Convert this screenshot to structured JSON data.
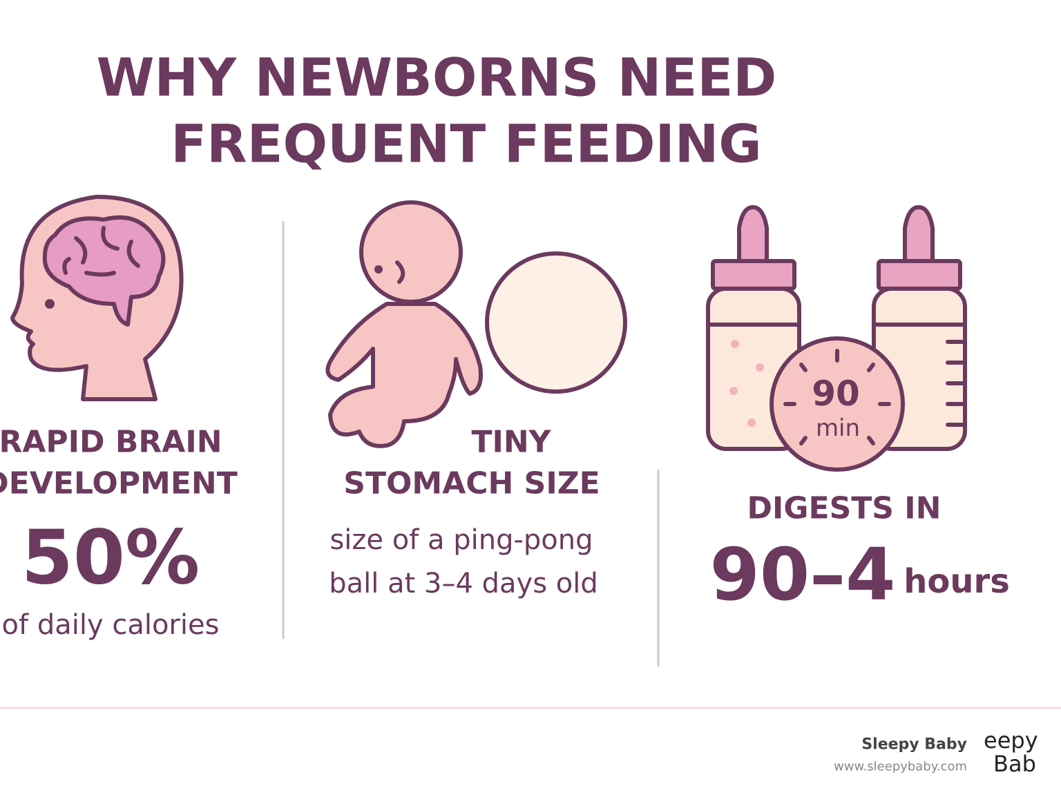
{
  "title": {
    "lines": [
      "WHY NEWBORNS NEED",
      "FREQUENT FEEDING"
    ]
  },
  "panels": [
    {
      "heading": [
        "RAPID BRAIN",
        "DEVELOPMENT"
      ],
      "stat": "50%",
      "caption": [
        "of daily calories"
      ]
    },
    {
      "heading": [
        "TINY",
        "STOMACH SIZE"
      ],
      "caption": [
        "size of a ping-pong",
        "ball at 3–4 days old"
      ]
    },
    {
      "badge": [
        "90",
        "min"
      ],
      "heading": [
        "DIGESTS IN"
      ],
      "stat": "90–4",
      "unit": "hours"
    }
  ],
  "footer": {
    "brand": "Sleepy Baby",
    "url": "www.sleepybaby.com",
    "logo": [
      "eepy",
      "Bab"
    ]
  }
}
